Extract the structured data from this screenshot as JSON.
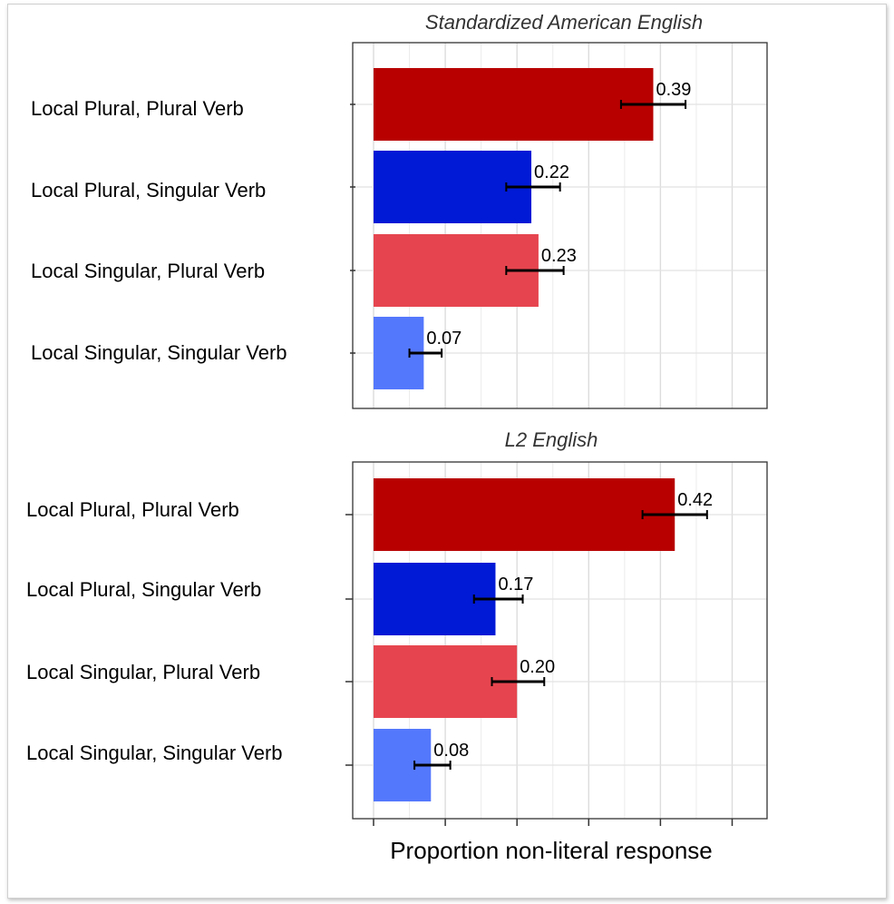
{
  "chart_data": [
    {
      "type": "bar",
      "orientation": "horizontal",
      "title": "Standardized American English",
      "xlabel": "",
      "xlim": [
        0,
        0.5
      ],
      "grid": true,
      "categories": [
        "Local Plural, Plural Verb",
        "Local Plural, Singular Verb",
        "Local Singular, Plural Verb",
        "Local Singular, Singular Verb"
      ],
      "values": [
        0.39,
        0.22,
        0.23,
        0.07
      ],
      "value_labels": [
        "0.39",
        "0.22",
        "0.23",
        "0.07"
      ],
      "error_low": [
        0.345,
        0.185,
        0.185,
        0.05
      ],
      "error_high": [
        0.435,
        0.26,
        0.265,
        0.095
      ],
      "bar_colors": [
        "#b80000",
        "#001ad6",
        "#e6454f",
        "#5478fc"
      ]
    },
    {
      "type": "bar",
      "orientation": "horizontal",
      "title": "L2 English",
      "xlabel": "Proportion non-literal response",
      "xlim": [
        0,
        0.5
      ],
      "grid": true,
      "categories": [
        "Local Plural, Plural Verb",
        "Local Plural, Singular Verb",
        "Local Singular, Plural Verb",
        "Local Singular, Singular Verb"
      ],
      "values": [
        0.42,
        0.17,
        0.2,
        0.08
      ],
      "value_labels": [
        "0.42",
        "0.17",
        "0.20",
        "0.08"
      ],
      "error_low": [
        0.375,
        0.14,
        0.165,
        0.057
      ],
      "error_high": [
        0.465,
        0.208,
        0.238,
        0.107
      ],
      "bar_colors": [
        "#b80000",
        "#001ad6",
        "#e6454f",
        "#5478fc"
      ]
    }
  ]
}
